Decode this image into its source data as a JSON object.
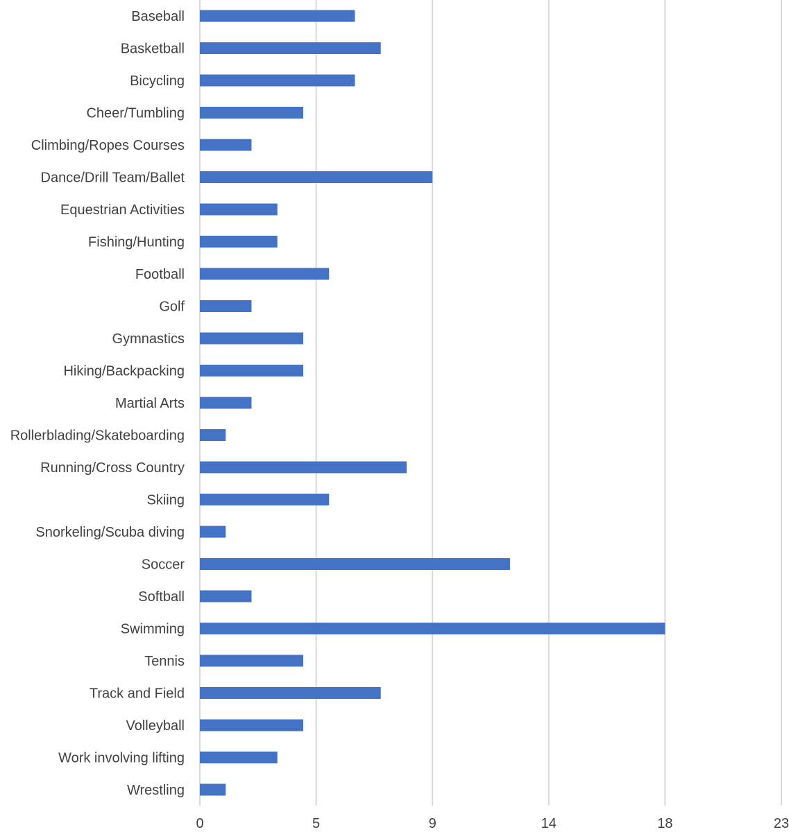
{
  "chart_data": {
    "type": "bar",
    "orientation": "horizontal",
    "categories": [
      "Baseball",
      "Basketball",
      "Bicycling",
      "Cheer/Tumbling",
      "Climbing/Ropes Courses",
      "Dance/Drill Team/Ballet",
      "Equestrian Activities",
      "Fishing/Hunting",
      "Football",
      "Golf",
      "Gymnastics",
      "Hiking/Backpacking",
      "Martial Arts",
      "Rollerblading/Skateboarding",
      "Running/Cross Country",
      "Skiing",
      "Snorkeling/Scuba diving",
      "Soccer",
      "Softball",
      "Swimming",
      "Tennis",
      "Track and Field",
      "Volleyball",
      "Work involving lifting",
      "Wrestling"
    ],
    "values": [
      6,
      7,
      6,
      4,
      2,
      9,
      3,
      3,
      5,
      2,
      4,
      4,
      2,
      1,
      8,
      5,
      1,
      12,
      2,
      18,
      4,
      7,
      4,
      3,
      1
    ],
    "xlim": [
      0,
      22.5
    ],
    "xticks": [
      0,
      4.5,
      9,
      13.5,
      18,
      22.5
    ],
    "xtick_labels": [
      "0",
      "5",
      "9",
      "14",
      "18",
      "23"
    ],
    "grid": "vertical",
    "legend": "none",
    "title": "",
    "xlabel": "",
    "ylabel": "",
    "colors": {
      "bar": "#4472C4",
      "grid": "#D9D9D9",
      "text": "#404040"
    }
  }
}
